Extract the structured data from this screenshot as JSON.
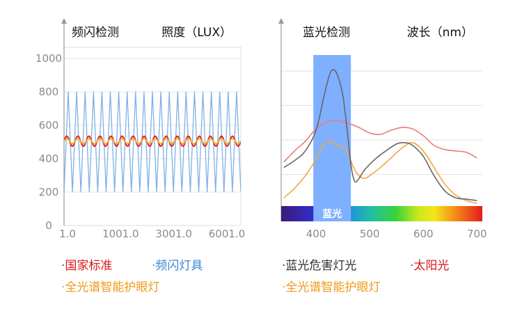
{
  "chart_data": [
    {
      "type": "line",
      "title": "频闪检测",
      "ylabel": "照度（LUX）",
      "yticks": [
        "1000",
        "800",
        "600",
        "400",
        "200",
        "0"
      ],
      "ytick_values": [
        1000,
        800,
        600,
        400,
        200,
        0
      ],
      "ylim": [
        0,
        1000
      ],
      "xticks": [
        "1.0",
        "1001.0",
        "3001.0",
        "6001.0"
      ],
      "grid": true,
      "series": [
        {
          "name": "国家标准",
          "color": "#e0201a",
          "waveform": "sine",
          "center": 505,
          "amplitude": 30,
          "cycles": 16
        },
        {
          "name": "频闪灯具",
          "color": "#7fb0e6",
          "waveform": "triangle",
          "min": 200,
          "max": 800,
          "cycles": 21
        },
        {
          "name": "全光谱智能护眼灯",
          "color": "#f0b13c",
          "waveform": "sine",
          "center": 505,
          "amplitude": 15,
          "cycles": 16
        }
      ],
      "legend": [
        {
          "label": "·国家标准",
          "color": "#d7191c"
        },
        {
          "label": "·频闪灯具",
          "color": "#3b86d4"
        },
        {
          "label": "·全光谱智能护眼灯",
          "color": "#f09a1a"
        }
      ]
    },
    {
      "type": "line",
      "title": "蓝光检测",
      "xlabel": "波长（nm）",
      "xticks": [
        400,
        500,
        600,
        700
      ],
      "xlim": [
        335,
        710
      ],
      "ylim": [
        0,
        1
      ],
      "grid": true,
      "highlight_band": {
        "label": "蓝光",
        "from": 395,
        "to": 465,
        "color": "#7fb0ff"
      },
      "spectrum_bar": true,
      "series": [
        {
          "name": "蓝光危害灯光",
          "color": "#666666",
          "x": [
            340,
            360,
            380,
            400,
            415,
            425,
            432,
            440,
            450,
            458,
            465,
            472,
            480,
            490,
            510,
            530,
            550,
            565,
            580,
            600,
            620,
            640,
            660,
            680,
            700
          ],
          "y": [
            0.28,
            0.33,
            0.4,
            0.55,
            0.8,
            0.95,
            0.99,
            0.95,
            0.8,
            0.55,
            0.3,
            0.18,
            0.2,
            0.26,
            0.34,
            0.4,
            0.45,
            0.46,
            0.44,
            0.36,
            0.22,
            0.11,
            0.06,
            0.05,
            0.04
          ]
        },
        {
          "name": "太阳光",
          "color": "#ec7a78",
          "x": [
            340,
            360,
            380,
            400,
            420,
            440,
            460,
            480,
            500,
            520,
            540,
            560,
            580,
            600,
            620,
            640,
            660,
            680,
            700
          ],
          "y": [
            0.32,
            0.4,
            0.47,
            0.56,
            0.61,
            0.62,
            0.6,
            0.57,
            0.53,
            0.52,
            0.55,
            0.57,
            0.56,
            0.51,
            0.44,
            0.41,
            0.4,
            0.39,
            0.35
          ]
        },
        {
          "name": "全光谱智能护眼灯",
          "color": "#f0a93a",
          "x": [
            340,
            360,
            380,
            400,
            410,
            420,
            430,
            440,
            450,
            460,
            470,
            480,
            490,
            500,
            520,
            540,
            560,
            580,
            600,
            620,
            640,
            660,
            680,
            700
          ],
          "y": [
            0.06,
            0.13,
            0.22,
            0.34,
            0.42,
            0.47,
            0.46,
            0.44,
            0.43,
            0.38,
            0.28,
            0.22,
            0.2,
            0.22,
            0.28,
            0.35,
            0.42,
            0.46,
            0.4,
            0.28,
            0.16,
            0.08,
            0.04,
            0.02
          ]
        }
      ],
      "legend": [
        {
          "label": "·蓝光危害灯光",
          "color": "#333333"
        },
        {
          "label": "·太阳光",
          "color": "#d7191c"
        },
        {
          "label": "·全光谱智能护眼灯",
          "color": "#f09a1a"
        }
      ]
    }
  ]
}
